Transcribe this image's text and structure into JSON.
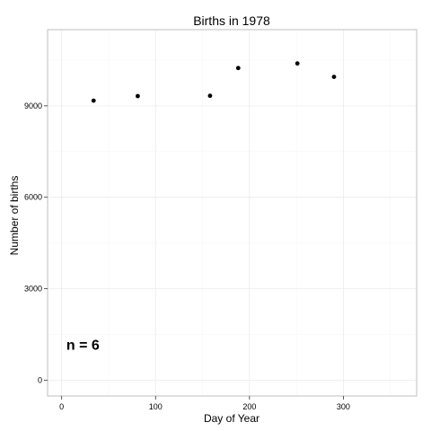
{
  "chart_data": {
    "type": "scatter",
    "title": "Births in 1978",
    "xlabel": "Day of Year",
    "ylabel": "Number of births",
    "xlim": [
      -15,
      378
    ],
    "ylim": [
      -520,
      11500
    ],
    "x_ticks": [
      0,
      100,
      200,
      300
    ],
    "y_ticks": [
      0,
      3000,
      6000,
      9000
    ],
    "x_tick_labels": [
      "0",
      "100",
      "200",
      "300"
    ],
    "y_tick_labels": [
      "0",
      "3000",
      "6000",
      "9000"
    ],
    "grid": true,
    "legend": "none",
    "annotation": {
      "text": "n =  6",
      "x": 5,
      "y": 1000
    },
    "series": [
      {
        "points": [
          {
            "x": 34,
            "y": 9170
          },
          {
            "x": 81,
            "y": 9320
          },
          {
            "x": 158,
            "y": 9330
          },
          {
            "x": 188,
            "y": 10240
          },
          {
            "x": 251,
            "y": 10390
          },
          {
            "x": 290,
            "y": 9950
          }
        ]
      }
    ],
    "colors": {
      "point": "#000000",
      "grid_major": "#ebebeb",
      "grid_minor": "#f7f7f7",
      "panel_border": "#bfbfbf"
    }
  }
}
